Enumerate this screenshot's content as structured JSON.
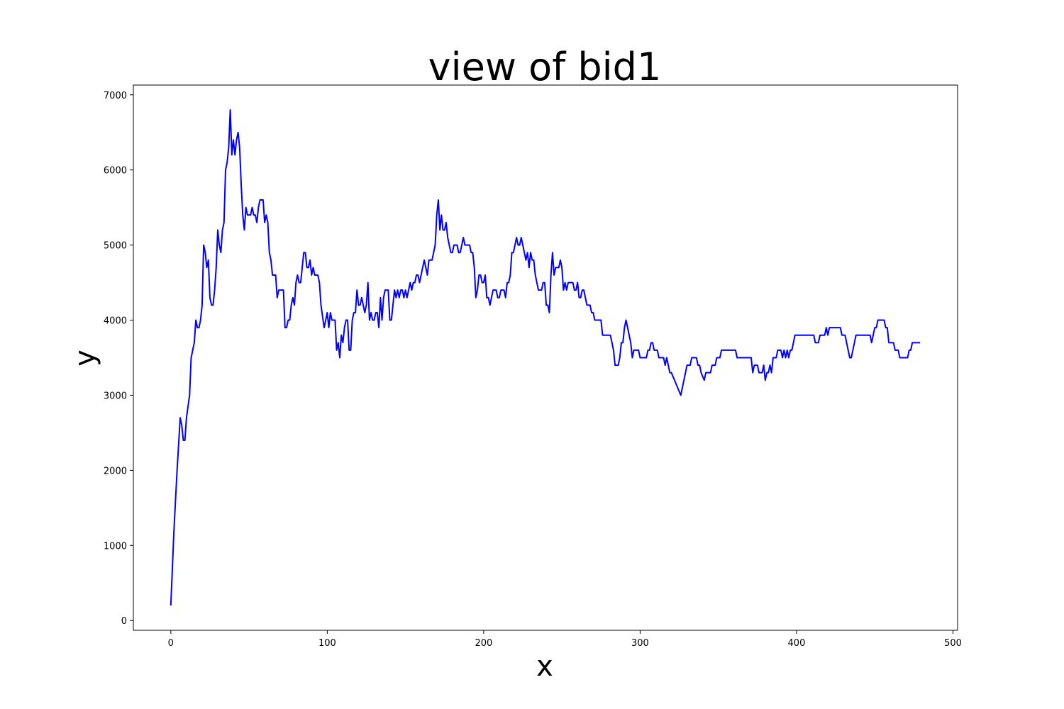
{
  "chart_data": {
    "type": "line",
    "title": "view of bid1",
    "xlabel": "x",
    "ylabel": "y",
    "color": "#0000ff",
    "x": [
      0,
      2,
      4,
      6,
      7,
      8,
      9,
      10,
      12,
      13,
      15,
      16,
      17,
      18,
      19,
      20,
      21,
      22,
      23,
      24,
      25,
      26,
      27,
      28,
      29,
      30,
      31,
      32,
      33,
      34,
      35,
      36,
      37,
      38,
      39,
      40,
      41,
      42,
      43,
      44,
      45,
      46,
      47,
      48,
      49,
      51,
      52,
      53,
      54,
      55,
      56,
      57,
      59,
      60,
      61,
      62,
      63,
      64,
      65,
      67,
      68,
      69,
      72,
      73,
      74,
      75,
      76,
      77,
      78,
      79,
      80,
      81,
      82,
      83,
      84,
      85,
      86,
      87,
      88,
      89,
      90,
      91,
      92,
      94,
      95,
      96,
      98,
      99,
      100,
      101,
      102,
      103,
      105,
      106,
      107,
      108,
      109,
      110,
      111,
      112,
      113,
      114,
      115,
      116,
      117,
      118,
      119,
      120,
      121,
      122,
      124,
      125,
      126,
      127,
      128,
      129,
      130,
      131,
      132,
      133,
      134,
      135,
      136,
      137,
      139,
      140,
      141,
      142,
      143,
      144,
      145,
      146,
      147,
      148,
      149,
      150,
      151,
      152,
      153,
      154,
      155,
      156,
      157,
      158,
      159,
      160,
      161,
      162,
      163,
      164,
      165,
      167,
      168,
      169,
      170,
      171,
      172,
      173,
      174,
      175,
      176,
      177,
      178,
      179,
      180,
      181,
      183,
      184,
      185,
      186,
      187,
      188,
      191,
      192,
      193,
      194,
      195,
      196,
      197,
      198,
      199,
      200,
      201,
      202,
      203,
      204,
      205,
      206,
      208,
      209,
      210,
      211,
      213,
      214,
      215,
      216,
      217,
      218,
      219,
      220,
      221,
      222,
      223,
      224,
      225,
      226,
      227,
      228,
      229,
      230,
      231,
      232,
      233,
      234,
      235,
      237,
      238,
      239,
      240,
      241,
      242,
      243,
      244,
      245,
      246,
      248,
      249,
      250,
      251,
      252,
      253,
      254,
      257,
      258,
      259,
      260,
      261,
      262,
      263,
      264,
      265,
      266,
      268,
      269,
      270,
      271,
      275,
      276,
      281,
      282,
      283,
      284,
      286,
      287,
      288,
      289,
      290,
      291,
      292,
      293,
      294,
      295,
      296,
      299,
      300,
      304,
      305,
      306,
      307,
      308,
      309,
      311,
      312,
      315,
      316,
      317,
      318,
      319,
      320,
      322,
      324,
      326,
      328,
      330,
      332,
      333,
      336,
      337,
      338,
      339,
      341,
      342,
      345,
      346,
      348,
      349,
      351,
      352,
      361,
      362,
      371,
      372,
      373,
      375,
      376,
      378,
      379,
      380,
      381,
      382,
      383,
      384,
      385,
      387,
      388,
      390,
      391,
      392,
      393,
      394,
      395,
      396,
      397,
      398,
      399,
      411,
      412,
      414,
      415,
      418,
      419,
      420,
      421,
      428,
      429,
      431,
      432,
      433,
      434,
      435,
      436,
      437,
      438,
      447,
      448,
      449,
      450,
      451,
      452,
      456,
      457,
      458,
      459,
      462,
      463,
      465,
      466,
      471,
      472,
      473,
      474,
      479
    ],
    "values": [
      200,
      1200,
      2000,
      2700,
      2600,
      2400,
      2400,
      2700,
      3000,
      3500,
      3700,
      4000,
      3900,
      3900,
      4000,
      4200,
      5000,
      4900,
      4700,
      4800,
      4300,
      4200,
      4200,
      4400,
      4700,
      5200,
      5000,
      4900,
      5200,
      5300,
      6000,
      6100,
      6300,
      6800,
      6200,
      6400,
      6200,
      6400,
      6500,
      6300,
      5800,
      5400,
      5200,
      5500,
      5400,
      5400,
      5500,
      5400,
      5400,
      5300,
      5500,
      5600,
      5600,
      5300,
      5400,
      5300,
      4900,
      4800,
      4600,
      4600,
      4300,
      4400,
      4400,
      3900,
      3900,
      4000,
      4000,
      4200,
      4300,
      4200,
      4500,
      4600,
      4500,
      4500,
      4700,
      4900,
      4900,
      4700,
      4700,
      4800,
      4600,
      4700,
      4600,
      4600,
      4500,
      4200,
      3900,
      4000,
      4100,
      3900,
      4100,
      4000,
      4000,
      3600,
      3700,
      3500,
      3800,
      3700,
      3900,
      4000,
      4000,
      3600,
      3600,
      4000,
      4100,
      4100,
      4400,
      4200,
      4200,
      4300,
      4100,
      4200,
      4500,
      4000,
      4100,
      4000,
      4000,
      4100,
      4100,
      3900,
      4300,
      4000,
      4300,
      4400,
      4400,
      4000,
      4000,
      4200,
      4400,
      4300,
      4400,
      4300,
      4400,
      4400,
      4300,
      4400,
      4300,
      4400,
      4500,
      4400,
      4500,
      4500,
      4600,
      4600,
      4500,
      4600,
      4700,
      4800,
      4700,
      4600,
      4800,
      4800,
      4900,
      5000,
      5400,
      5600,
      5200,
      5400,
      5200,
      5200,
      5300,
      5100,
      5000,
      4900,
      4900,
      5000,
      5000,
      4900,
      4900,
      5000,
      5100,
      5000,
      5000,
      4900,
      4900,
      4700,
      4300,
      4400,
      4600,
      4600,
      4500,
      4500,
      4600,
      4300,
      4300,
      4200,
      4300,
      4400,
      4400,
      4300,
      4300,
      4400,
      4400,
      4300,
      4500,
      4500,
      4600,
      4900,
      4900,
      5000,
      5100,
      5000,
      5000,
      5100,
      5000,
      4900,
      4800,
      4900,
      4700,
      4900,
      4800,
      4800,
      4600,
      4500,
      4400,
      4400,
      4500,
      4500,
      4200,
      4200,
      4100,
      4600,
      4900,
      4600,
      4700,
      4700,
      4800,
      4700,
      4400,
      4500,
      4400,
      4500,
      4500,
      4400,
      4400,
      4500,
      4300,
      4300,
      4400,
      4400,
      4300,
      4200,
      4200,
      4100,
      4100,
      4000,
      4000,
      3800,
      3800,
      3700,
      3600,
      3400,
      3400,
      3500,
      3700,
      3700,
      3900,
      4000,
      3900,
      3800,
      3700,
      3500,
      3600,
      3600,
      3500,
      3500,
      3600,
      3600,
      3700,
      3700,
      3600,
      3600,
      3500,
      3500,
      3400,
      3500,
      3400,
      3300,
      3300,
      3200,
      3100,
      3000,
      3200,
      3400,
      3400,
      3500,
      3500,
      3400,
      3400,
      3300,
      3200,
      3300,
      3300,
      3400,
      3400,
      3500,
      3500,
      3600,
      3600,
      3500,
      3500,
      3300,
      3400,
      3400,
      3300,
      3300,
      3400,
      3200,
      3300,
      3300,
      3400,
      3300,
      3500,
      3500,
      3600,
      3600,
      3500,
      3600,
      3500,
      3600,
      3500,
      3600,
      3600,
      3700,
      3800,
      3800,
      3700,
      3700,
      3800,
      3800,
      3900,
      3800,
      3900,
      3900,
      3800,
      3800,
      3700,
      3600,
      3500,
      3500,
      3600,
      3700,
      3800,
      3800,
      3700,
      3800,
      3900,
      3900,
      4000,
      4000,
      3900,
      3900,
      3700,
      3700,
      3600,
      3600,
      3500,
      3500,
      3600,
      3600,
      3700,
      3700
    ],
    "xlim": [
      -23.95,
      502.95
    ],
    "ylim": [
      -130,
      7130
    ],
    "xticks": [
      0,
      100,
      200,
      300,
      400,
      500
    ],
    "yticks": [
      0,
      1000,
      2000,
      3000,
      4000,
      5000,
      6000,
      7000
    ]
  }
}
